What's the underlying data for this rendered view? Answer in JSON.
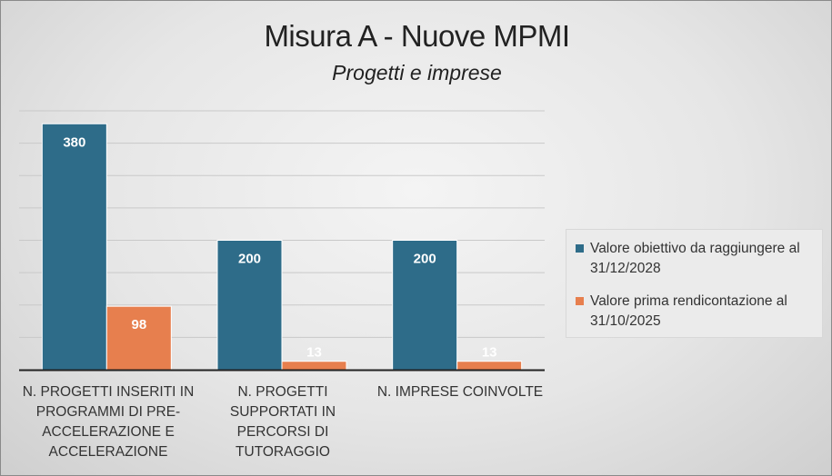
{
  "chart_data": {
    "type": "bar",
    "title": "Misura A - Nuove MPMI",
    "subtitle": "Progetti e imprese",
    "categories": [
      "N. PROGETTI INSERITI IN PROGRAMMI DI PRE-ACCELERAZIONE E ACCELERAZIONE",
      "N. PROGETTI SUPPORTATI IN PERCORSI DI TUTORAGGIO",
      "N. IMPRESE COINVOLTE"
    ],
    "series": [
      {
        "name": "Valore obiettivo da raggiungere al 31/12/2028",
        "values": [
          380,
          200,
          200
        ],
        "color": "#2e6c89"
      },
      {
        "name": "Valore prima rendicontazione al 31/10/2025",
        "values": [
          98,
          13,
          13
        ],
        "color": "#e77f4e"
      }
    ],
    "ylim": [
      0,
      400
    ],
    "grid": true,
    "legend_position": "right",
    "data_labels": true
  }
}
